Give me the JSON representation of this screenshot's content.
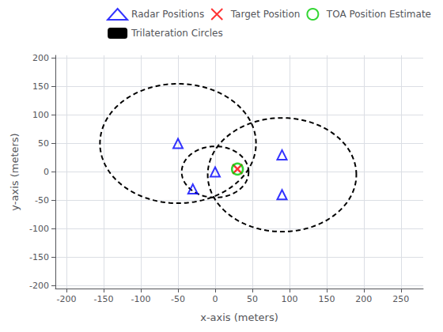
{
  "chart_data": {
    "type": "scatter",
    "xlabel": "x-axis (meters)",
    "ylabel": "y-axis (meters)",
    "xlim": [
      -215,
      280
    ],
    "ylim": [
      -205,
      205
    ],
    "xticks": [
      -200,
      -150,
      -100,
      -50,
      0,
      50,
      100,
      150,
      200,
      250
    ],
    "yticks": [
      -200,
      -150,
      -100,
      -50,
      0,
      50,
      100,
      150,
      200
    ],
    "grid": true,
    "legend": "upper right",
    "series": [
      {
        "name": "Radar Positions",
        "type": "scatter",
        "color": "#0000FF",
        "marker": "triangle",
        "x": [
          -50,
          0,
          -30,
          90,
          90
        ],
        "values": [
          50,
          0,
          -30,
          30,
          -40
        ]
      },
      {
        "name": "Target Position",
        "type": "scatter",
        "color": "#FF0000",
        "marker": "x",
        "x": [
          30
        ],
        "values": [
          5
        ]
      },
      {
        "name": "TOA Position Estimate",
        "type": "scatter",
        "color": "#00CC00",
        "marker": "circle",
        "x": [
          30
        ],
        "values": [
          5
        ]
      },
      {
        "name": "Trilateration Circles",
        "type": "circle",
        "color": "#000000",
        "line_style": "dashed",
        "cx": [
          -50,
          0,
          90
        ],
        "cy": [
          50,
          0,
          -5
        ],
        "r": [
          105,
          45,
          100
        ]
      }
    ]
  }
}
